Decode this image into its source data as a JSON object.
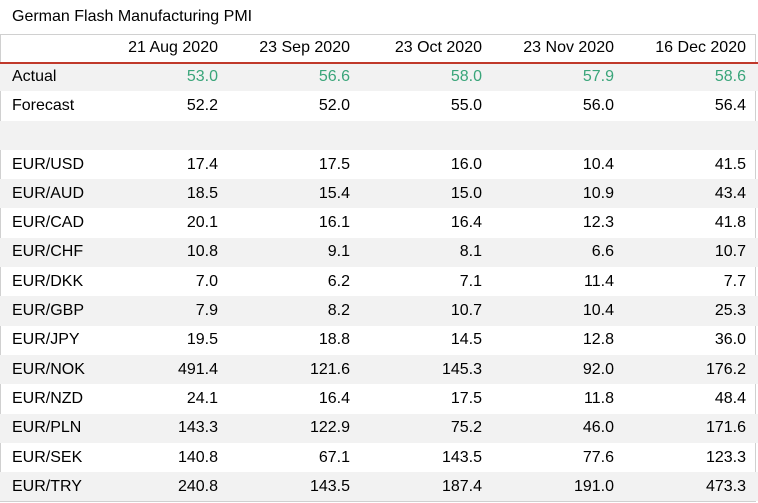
{
  "chart_data": {
    "type": "table",
    "title": "German Flash Manufacturing PMI",
    "columns": [
      "21 Aug 2020",
      "23 Sep 2020",
      "23 Oct 2020",
      "23 Nov 2020",
      "16 Dec 2020"
    ],
    "rows": [
      {
        "label": "Actual",
        "values": [
          "53.0",
          "56.6",
          "58.0",
          "57.9",
          "58.6"
        ],
        "highlight": true
      },
      {
        "label": "Forecast",
        "values": [
          "52.2",
          "52.0",
          "55.0",
          "56.0",
          "56.4"
        ]
      },
      {
        "label": "",
        "values": [
          "",
          "",
          "",
          "",
          ""
        ]
      },
      {
        "label": "EUR/USD",
        "values": [
          "17.4",
          "17.5",
          "16.0",
          "10.4",
          "41.5"
        ]
      },
      {
        "label": "EUR/AUD",
        "values": [
          "18.5",
          "15.4",
          "15.0",
          "10.9",
          "43.4"
        ]
      },
      {
        "label": "EUR/CAD",
        "values": [
          "20.1",
          "16.1",
          "16.4",
          "12.3",
          "41.8"
        ]
      },
      {
        "label": "EUR/CHF",
        "values": [
          "10.8",
          "9.1",
          "8.1",
          "6.6",
          "10.7"
        ]
      },
      {
        "label": "EUR/DKK",
        "values": [
          "7.0",
          "6.2",
          "7.1",
          "11.4",
          "7.7"
        ]
      },
      {
        "label": "EUR/GBP",
        "values": [
          "7.9",
          "8.2",
          "10.7",
          "10.4",
          "25.3"
        ]
      },
      {
        "label": "EUR/JPY",
        "values": [
          "19.5",
          "18.8",
          "14.5",
          "12.8",
          "36.0"
        ]
      },
      {
        "label": "EUR/NOK",
        "values": [
          "491.4",
          "121.6",
          "145.3",
          "92.0",
          "176.2"
        ]
      },
      {
        "label": "EUR/NZD",
        "values": [
          "24.1",
          "16.4",
          "17.5",
          "11.8",
          "48.4"
        ]
      },
      {
        "label": "EUR/PLN",
        "values": [
          "143.3",
          "122.9",
          "75.2",
          "46.0",
          "171.6"
        ]
      },
      {
        "label": "EUR/SEK",
        "values": [
          "140.8",
          "67.1",
          "143.5",
          "77.6",
          "123.3"
        ]
      },
      {
        "label": "EUR/TRY",
        "values": [
          "240.8",
          "143.5",
          "187.4",
          "191.0",
          "473.3"
        ]
      }
    ]
  },
  "colors": {
    "actual_text": "#3aa57a",
    "header_rule": "#c0392b",
    "row_shade": "#f2f2f2"
  }
}
